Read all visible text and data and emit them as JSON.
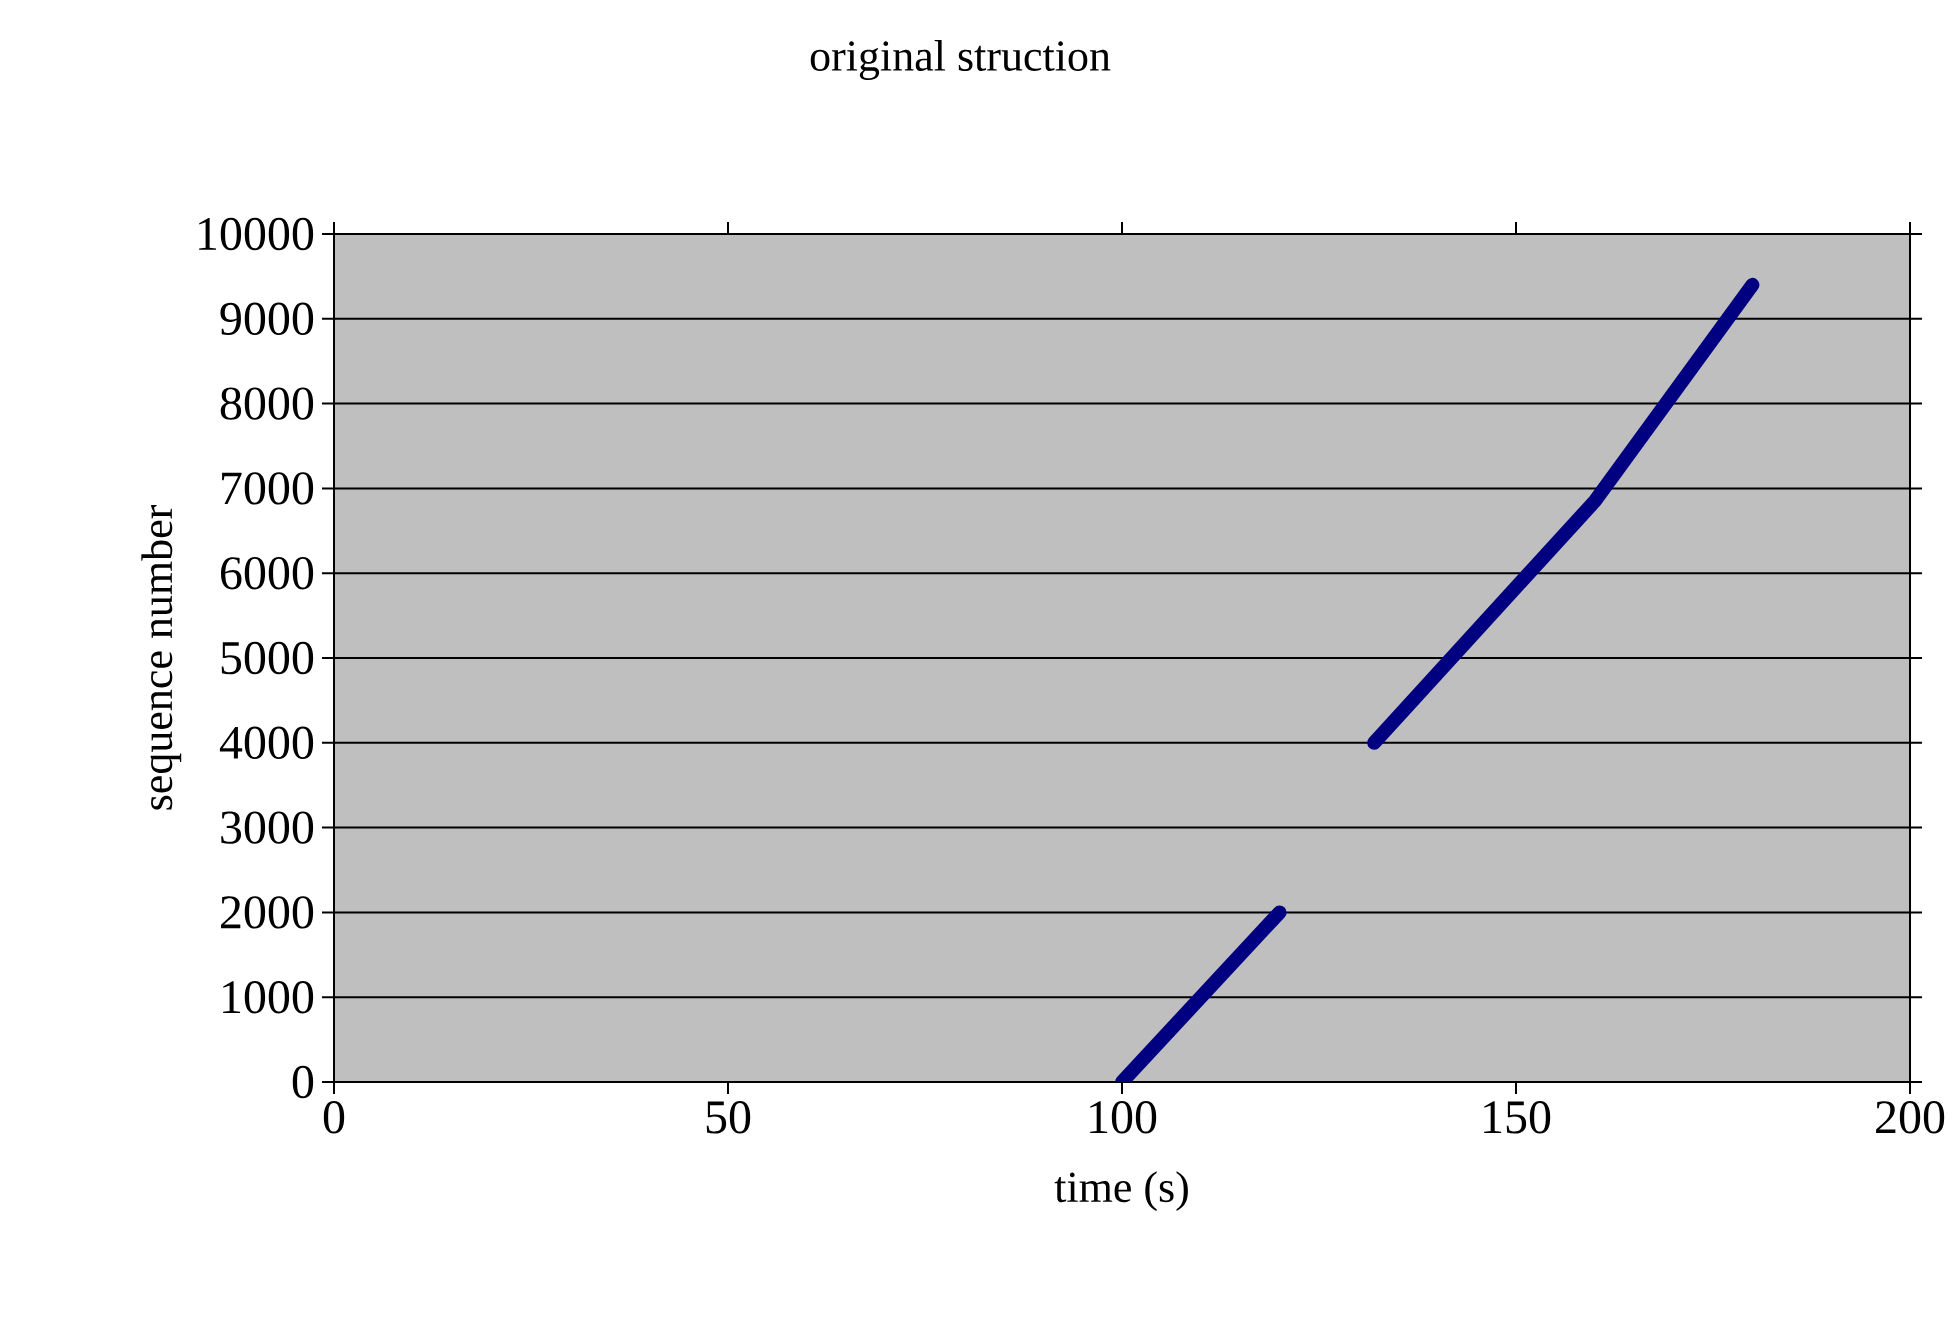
{
  "chart_data": {
    "type": "line",
    "title": "original struction",
    "xlabel": "time (s)",
    "ylabel": "sequence number",
    "x": [
      100,
      120,
      null,
      132,
      160,
      180
    ],
    "series": [
      {
        "color": "#000080",
        "values": [
          0,
          2000,
          null,
          4000,
          6850,
          9400
        ]
      }
    ],
    "xlim": [
      0,
      200
    ],
    "xticks": [
      0,
      50,
      100,
      150,
      200
    ],
    "ylim": [
      0,
      10000
    ],
    "yticks": [
      0,
      1000,
      2000,
      3000,
      4000,
      5000,
      6000,
      7000,
      8000,
      9000,
      10000
    ],
    "grid": "y",
    "line_style": "solid"
  }
}
